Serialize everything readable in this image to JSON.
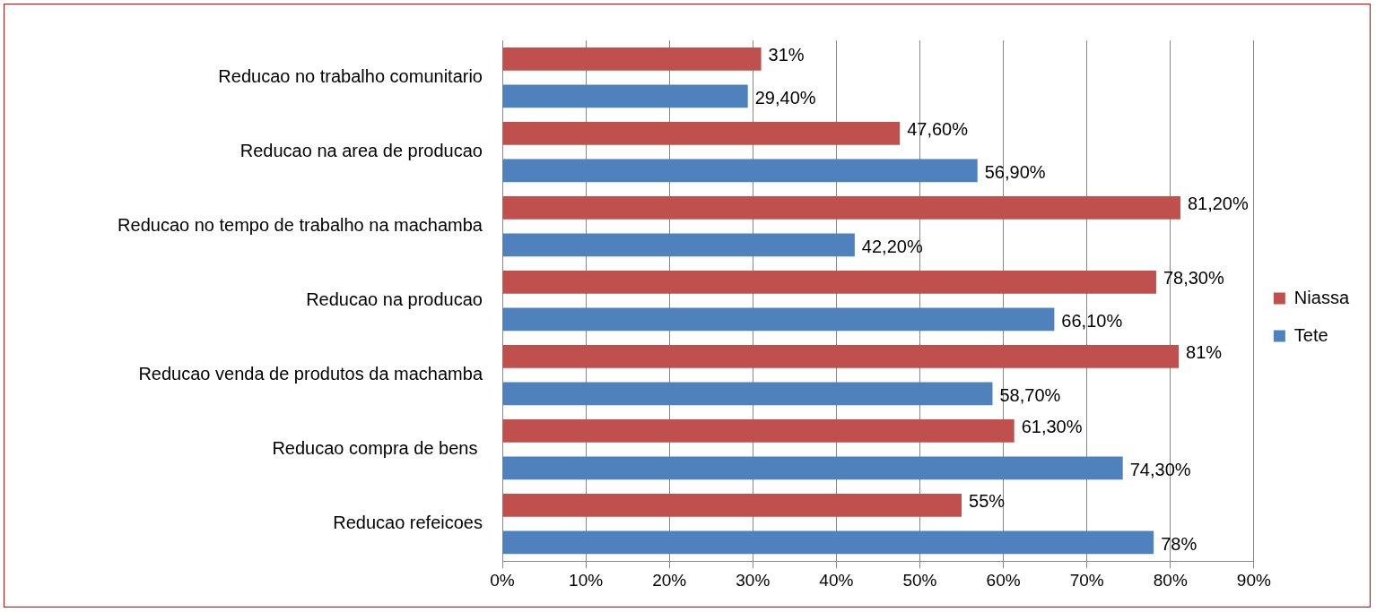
{
  "chart_data": {
    "type": "bar",
    "orientation": "horizontal",
    "categories": [
      "Reducao no trabalho comunitario",
      "Reducao na area de producao",
      "Reducao no tempo de trabalho na machamba",
      "Reducao na producao",
      "Reducao venda de produtos da machamba",
      "Reducao compra de bens ",
      "Reducao refeicoes"
    ],
    "series": [
      {
        "name": "Niassa",
        "color": "#c0504d",
        "values": [
          31,
          47.6,
          81.2,
          78.3,
          81,
          61.3,
          55
        ],
        "value_labels": [
          "31%",
          "47,60%",
          "81,20%",
          "78,30%",
          "81%",
          "61,30%",
          "55%"
        ]
      },
      {
        "name": "Tete",
        "color": "#4f81bd",
        "values": [
          29.4,
          56.9,
          42.2,
          66.1,
          58.7,
          74.3,
          78
        ],
        "value_labels": [
          "29,40%",
          "56,90%",
          "42,20%",
          "66,10%",
          "58,70%",
          "74,30%",
          "78%"
        ]
      }
    ],
    "xlim": [
      0,
      90
    ],
    "xticks": [
      {
        "value": 0,
        "label": "0%"
      },
      {
        "value": 10,
        "label": "10%"
      },
      {
        "value": 20,
        "label": "20%"
      },
      {
        "value": 30,
        "label": "30%"
      },
      {
        "value": 40,
        "label": "40%"
      },
      {
        "value": 50,
        "label": "50%"
      },
      {
        "value": 60,
        "label": "60%"
      },
      {
        "value": 70,
        "label": "70%"
      },
      {
        "value": 80,
        "label": "80%"
      },
      {
        "value": 90,
        "label": "90%"
      }
    ],
    "grid": "x",
    "legend": "right"
  }
}
